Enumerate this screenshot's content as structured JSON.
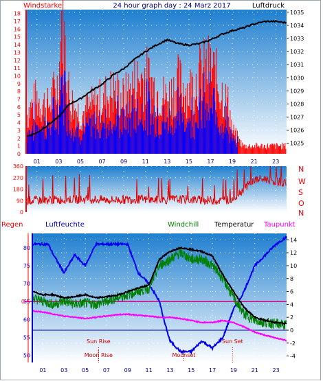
{
  "colors": {
    "wind": "#ff0000",
    "gust_blue": "#0000ff",
    "pressure": "#000000",
    "direction": "#e00000",
    "humidity": "#0000ee",
    "windchill": "#008000",
    "temperature": "#000000",
    "dewpoint": "#ff00ff",
    "rain": "#ff0000",
    "sun_rise": "#cc0000",
    "moon": "#cc0000",
    "hour_label": "#000080"
  },
  "top": {
    "left_title": "Windstarke",
    "center_title": "24 hour graph day : 24 Marz 2017",
    "right_title": "Luftdruck"
  },
  "mid": {
    "direction_labels": [
      "N",
      "W",
      "S",
      "O",
      "N"
    ]
  },
  "bottom": {
    "legend": {
      "regen": "Regen",
      "luftfeuchte": "Luftfeuchte",
      "windchill": "Windchill",
      "temperatur": "Temperatur",
      "taupunkt": "Taupunkt"
    },
    "annotations": {
      "sun_rise": "Sun Rise",
      "moon_rise": "Moon Rise",
      "sun_set": "Sun Set",
      "moon_set": "Moonset"
    }
  },
  "chart_data": [
    {
      "type": "line",
      "id": "wind_pressure",
      "title": "24 hour graph day : 24 Marz 2017",
      "left_axis_title": "Windstarke",
      "right_axis_title": "Luftdruck",
      "x_tick_labels": [
        "01",
        "03",
        "05",
        "07",
        "09",
        "11",
        "13",
        "15",
        "17",
        "19",
        "21",
        "23"
      ],
      "x_tick_hours": [
        1,
        3,
        5,
        7,
        9,
        11,
        13,
        15,
        17,
        19,
        21,
        23
      ],
      "x_range": [
        0,
        24
      ],
      "left_ylim": [
        0,
        18.5
      ],
      "left_ticks": [
        0,
        1,
        2,
        3,
        4,
        5,
        6,
        7,
        8,
        9,
        10,
        11,
        12,
        13,
        14,
        15,
        16,
        17,
        18
      ],
      "right_ylim": [
        1024.2,
        1035.2
      ],
      "right_ticks": [
        1025,
        1026,
        1027,
        1028,
        1029,
        1030,
        1031,
        1032,
        1033,
        1034,
        1035
      ],
      "series": [
        {
          "name": "Windstarke",
          "x": [
            0,
            1,
            2,
            3,
            3.3,
            4,
            5,
            6,
            7,
            8,
            9,
            10,
            11,
            12,
            13,
            14,
            15,
            16,
            17,
            18,
            18.7,
            19,
            20,
            21,
            22,
            23,
            24
          ],
          "values": [
            5,
            7,
            6,
            9,
            18,
            7,
            5,
            6,
            7,
            8,
            7,
            9,
            10,
            8,
            7,
            9,
            8,
            10,
            11,
            8,
            6,
            3,
            1,
            1,
            1,
            1,
            1
          ]
        },
        {
          "name": "Luftdruck",
          "x": [
            0,
            1,
            2,
            3,
            4,
            5,
            6,
            7,
            8,
            9,
            10,
            11,
            12,
            13,
            14,
            15,
            16,
            17,
            18,
            19,
            20,
            21,
            22,
            23,
            24
          ],
          "values": [
            1025.5,
            1025.8,
            1026.4,
            1027.0,
            1028.0,
            1028.4,
            1029.0,
            1029.5,
            1030.2,
            1030.7,
            1031.4,
            1032.0,
            1032.5,
            1032.9,
            1032.6,
            1032.5,
            1032.6,
            1032.9,
            1033.3,
            1033.6,
            1033.8,
            1034.1,
            1034.3,
            1034.3,
            1034.2
          ]
        }
      ]
    },
    {
      "type": "line",
      "id": "wind_direction",
      "x_tick_labels": [
        "01",
        "03",
        "05",
        "07",
        "09",
        "11",
        "13",
        "15",
        "17",
        "19",
        "21",
        "23"
      ],
      "x_range": [
        0,
        24
      ],
      "ylim": [
        0,
        360
      ],
      "y_ticks": [
        0,
        90,
        180,
        270,
        360
      ],
      "series": [
        {
          "name": "Windrichtung",
          "x": [
            0,
            2,
            4,
            6,
            8,
            10,
            12,
            14,
            16,
            18,
            19,
            20,
            21,
            22,
            23,
            24
          ],
          "values": [
            90,
            95,
            100,
            100,
            95,
            100,
            95,
            100,
            95,
            90,
            100,
            180,
            250,
            260,
            240,
            230
          ]
        }
      ]
    },
    {
      "type": "line",
      "id": "temperature_humidity",
      "x_tick_labels": [
        "01",
        "03",
        "05",
        "07",
        "09",
        "11",
        "13",
        "15",
        "17",
        "19",
        "21",
        "23"
      ],
      "x_range": [
        0,
        24
      ],
      "left_ylim": [
        48,
        84
      ],
      "left_ticks": [
        50,
        55,
        60,
        65,
        70,
        75,
        80
      ],
      "left_axis_title": "Luftfeuchte",
      "right_ylim": [
        -5,
        15
      ],
      "right_ticks": [
        -4,
        -2,
        0,
        2,
        4,
        6,
        8,
        10,
        12,
        14
      ],
      "rain_axis": {
        "title": "Regen",
        "tick_labels": [
          "0"
        ]
      },
      "series": [
        {
          "name": "Luftfeuchte",
          "x": [
            0,
            1.5,
            2,
            3,
            4,
            5,
            6,
            7,
            8,
            9,
            10,
            11,
            12,
            12.5,
            13,
            14,
            15,
            16,
            17,
            18,
            19,
            19.5,
            20,
            21,
            22,
            23,
            24
          ],
          "values": [
            81,
            81,
            78,
            73,
            78,
            75,
            81,
            81,
            81,
            81,
            73,
            70,
            65,
            59,
            54,
            51,
            51,
            54,
            52,
            55,
            63,
            65,
            68,
            75,
            78,
            81,
            83
          ]
        },
        {
          "name": "Windchill",
          "x": [
            0,
            1,
            2,
            3,
            4,
            5,
            6,
            7,
            8,
            9,
            10,
            11,
            12,
            13,
            14,
            15,
            16,
            17,
            18,
            19,
            20,
            21,
            22,
            23,
            24
          ],
          "values": [
            5,
            4.5,
            4,
            4.5,
            4,
            4.2,
            4,
            4.5,
            5,
            5.5,
            6,
            6.5,
            10,
            11,
            12,
            11,
            11,
            10,
            8,
            5,
            2.5,
            1.5,
            1.2,
            1.0,
            0.8
          ]
        },
        {
          "name": "Temperatur",
          "x": [
            0,
            1,
            2,
            3,
            4,
            5,
            6,
            7,
            8,
            9,
            10,
            11,
            12,
            13,
            14,
            15,
            16,
            17,
            18,
            19,
            20,
            21,
            22,
            23,
            24
          ],
          "values": [
            6,
            5.5,
            5.5,
            5.0,
            5.2,
            5.5,
            5.0,
            5.2,
            5.4,
            6,
            6.5,
            7,
            11,
            12.2,
            12.8,
            12.5,
            12.2,
            11.5,
            8.5,
            6,
            3.5,
            2,
            1.5,
            1.2,
            1.0
          ]
        },
        {
          "name": "Taupunkt",
          "x": [
            0,
            1,
            2,
            3,
            4,
            5,
            6,
            7,
            8,
            9,
            10,
            11,
            12,
            13,
            14,
            15,
            16,
            17,
            18,
            19,
            20,
            21,
            22,
            23,
            24
          ],
          "values": [
            3,
            2.8,
            2.5,
            2.2,
            2.0,
            1.8,
            2.0,
            2.2,
            2.4,
            2.5,
            2.3,
            2.2,
            2.0,
            2.0,
            1.8,
            1.5,
            1.2,
            1.2,
            1.5,
            1.2,
            0.5,
            -0.3,
            -0.8,
            -1.2,
            -1.6
          ]
        },
        {
          "name": "Regen",
          "x": [
            0,
            24
          ],
          "values": [
            0,
            0
          ]
        }
      ],
      "zero_line_celsius": 0,
      "markers": [
        {
          "label": "Sun Rise",
          "hour": 6.25,
          "row": "upper"
        },
        {
          "label": "Moon Rise",
          "hour": 6.25,
          "row": "lower"
        },
        {
          "label": "Sun Set",
          "hour": 18.9,
          "row": "upper"
        },
        {
          "label": "Moonset",
          "hour": 14.3,
          "row": "lower"
        }
      ]
    }
  ]
}
